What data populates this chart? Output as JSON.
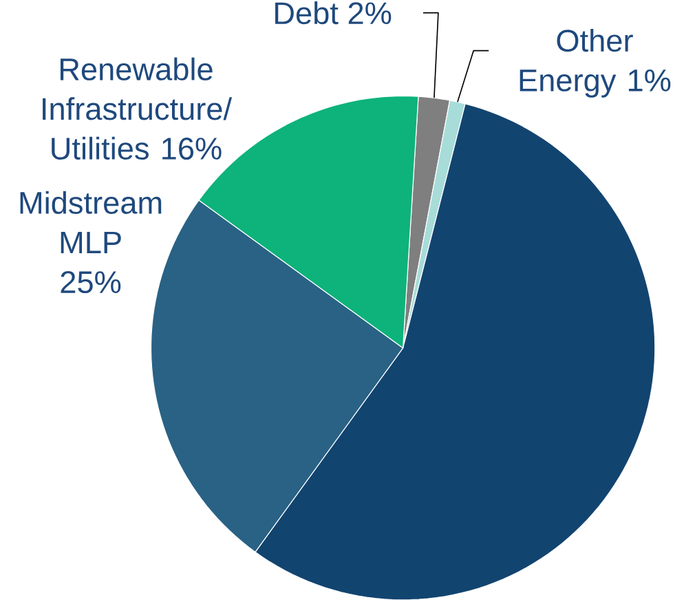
{
  "chart_data": {
    "type": "pie",
    "categories": [
      "Debt",
      "Other Energy",
      null,
      "Midstream MLP",
      "Renewable Infrastructure/ Utilities"
    ],
    "values": [
      2,
      1,
      56,
      25,
      16
    ],
    "value_labels": [
      "2%",
      "1%",
      null,
      "25%",
      "16%"
    ],
    "colors": [
      "#7f7f7f",
      "#a8dcd9",
      "#124470",
      "#296285",
      "#0db37a"
    ]
  }
}
